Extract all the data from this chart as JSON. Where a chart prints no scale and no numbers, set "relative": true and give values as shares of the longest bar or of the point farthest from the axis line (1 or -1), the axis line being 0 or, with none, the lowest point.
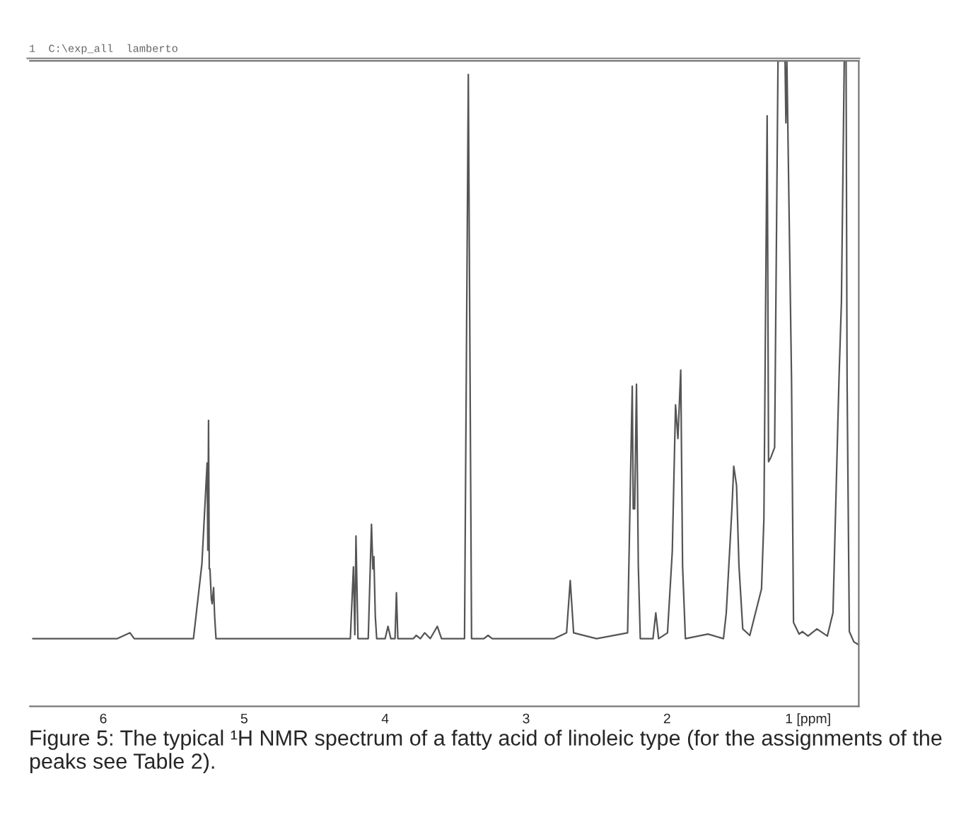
{
  "chart_data": {
    "type": "line",
    "relative": true,
    "title": "1  C:\\exp_all  lamberto",
    "annotations": [
      "Figure 5: The typical ¹H NMR spectrum of a fatty acid of linoleic type (for the assignments of the peaks see Table 2)."
    ],
    "xlim": [
      6.52,
      0.64
    ],
    "xticks": [
      6,
      5,
      4,
      3,
      2,
      {
        "value": 1,
        "label": "1 [ppm]"
      }
    ],
    "grid": false,
    "legend": false,
    "marker": "none",
    "line_style": "solid",
    "series": [
      {
        "color": "#555555",
        "x": [
          6.5,
          6.2,
          5.9,
          5.81,
          5.78,
          5.5,
          5.36,
          5.3,
          5.263,
          5.258,
          5.253,
          5.248,
          5.243,
          5.233,
          5.227,
          5.217,
          5.21,
          5.2,
          5.0,
          4.6,
          4.3,
          4.247,
          4.225,
          4.215,
          4.207,
          4.193,
          4.12,
          4.097,
          4.087,
          4.08,
          4.07,
          4.06,
          4.0,
          3.98,
          3.96,
          3.93,
          3.92,
          3.91,
          3.8,
          3.78,
          3.75,
          3.72,
          3.68,
          3.63,
          3.6,
          3.437,
          3.41,
          3.387,
          3.3,
          3.27,
          3.24,
          3.0,
          2.8,
          2.713,
          2.687,
          2.663,
          2.5,
          2.28,
          2.247,
          2.24,
          2.23,
          2.217,
          2.204,
          2.19,
          2.1,
          2.08,
          2.06,
          1.997,
          1.963,
          1.94,
          1.923,
          1.903,
          1.89,
          1.87,
          1.71,
          1.6,
          1.58,
          1.54,
          1.527,
          1.507,
          1.49,
          1.463,
          1.413,
          1.33,
          1.313,
          1.29,
          1.28,
          1.263,
          1.237,
          1.213,
          1.18,
          1.163,
          1.157,
          1.15,
          1.117,
          1.103,
          1.063,
          1.04,
          1.0,
          0.937,
          0.863,
          0.823,
          0.78,
          0.763,
          0.743,
          0.73,
          0.723,
          0.707,
          0.675,
          0.645
        ],
        "values": [
          0.105,
          0.105,
          0.105,
          0.114,
          0.105,
          0.105,
          0.105,
          0.221,
          0.377,
          0.242,
          0.443,
          0.213,
          0.213,
          0.166,
          0.159,
          0.184,
          0.141,
          0.105,
          0.105,
          0.105,
          0.105,
          0.105,
          0.216,
          0.111,
          0.264,
          0.105,
          0.105,
          0.282,
          0.213,
          0.232,
          0.14,
          0.105,
          0.105,
          0.124,
          0.105,
          0.105,
          0.176,
          0.105,
          0.105,
          0.11,
          0.105,
          0.114,
          0.105,
          0.124,
          0.105,
          0.105,
          0.979,
          0.105,
          0.105,
          0.11,
          0.105,
          0.105,
          0.105,
          0.114,
          0.195,
          0.114,
          0.105,
          0.114,
          0.496,
          0.306,
          0.306,
          0.499,
          0.218,
          0.105,
          0.105,
          0.145,
          0.105,
          0.114,
          0.24,
          0.467,
          0.415,
          0.521,
          0.218,
          0.105,
          0.112,
          0.105,
          0.145,
          0.306,
          0.372,
          0.342,
          0.218,
          0.12,
          0.11,
          0.182,
          0.291,
          0.915,
          0.379,
          0.386,
          0.401,
          1.0,
          1.0,
          1.0,
          0.904,
          1.0,
          0.506,
          0.13,
          0.112,
          0.116,
          0.109,
          0.12,
          0.109,
          0.145,
          0.51,
          0.627,
          1.0,
          1.0,
          0.506,
          0.116,
          0.1,
          0.096
        ]
      }
    ]
  }
}
